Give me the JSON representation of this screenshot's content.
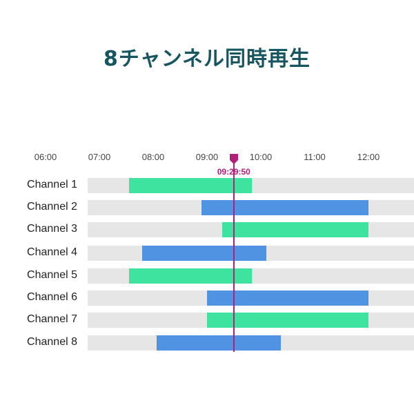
{
  "title": "8チャンネル同時再生",
  "timeline": {
    "ticks": [
      "06:00",
      "07:00",
      "08:00",
      "09:00",
      "10:00",
      "11:00",
      "12:00"
    ],
    "playhead": {
      "label": "09:29:50",
      "time": "09:29:50",
      "color": "#b0207a"
    },
    "colors": {
      "green": "#3ee3a0",
      "blue": "#5193e3",
      "track": "#e6e6e6"
    },
    "channels": [
      {
        "name": "Channel 1",
        "start": "07:33",
        "end": "09:50",
        "color": "green"
      },
      {
        "name": "Channel 2",
        "start": "08:54",
        "end": "12:00+",
        "color": "blue"
      },
      {
        "name": "Channel 3",
        "start": "09:17",
        "end": "12:00+",
        "color": "green"
      },
      {
        "name": "Channel 4",
        "start": "07:48",
        "end": "10:06",
        "color": "blue"
      },
      {
        "name": "Channel 5",
        "start": "07:33",
        "end": "09:50",
        "color": "green"
      },
      {
        "name": "Channel 6",
        "start": "09:00",
        "end": "12:00+",
        "color": "blue"
      },
      {
        "name": "Channel 7",
        "start": "09:00",
        "end": "12:00+",
        "color": "green"
      },
      {
        "name": "Channel 8",
        "start": "08:04",
        "end": "10:22",
        "color": "blue"
      }
    ]
  }
}
